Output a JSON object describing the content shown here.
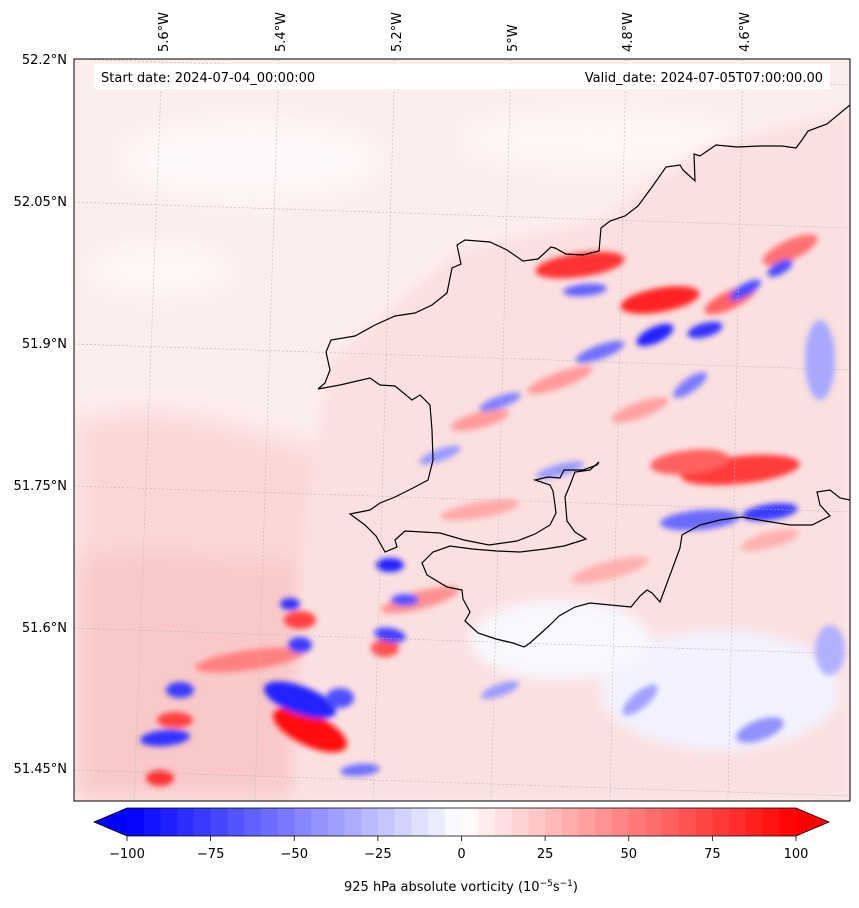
{
  "header": {
    "start_date": "Start date: 2024-07-04_00:00:00",
    "valid_date": "Valid_date: 2024-07-05T07:00:00.00"
  },
  "map": {
    "lon_labels": [
      "5.6°W",
      "5.4°W",
      "5.2°W",
      "5°W",
      "4.8°W",
      "4.6°W"
    ],
    "lat_labels": [
      "52.2°N",
      "52.05°N",
      "51.9°N",
      "51.75°N",
      "51.6°N",
      "51.45°N"
    ],
    "gridlines": true
  },
  "colorbar": {
    "label": "925 hPa absolute vorticity (10",
    "unit_exp1": "−5",
    "unit_mid": "s",
    "unit_exp2": "−1",
    "unit_close": ")",
    "ticks": [
      "−100",
      "−75",
      "−50",
      "−25",
      "0",
      "25",
      "50",
      "75",
      "100"
    ],
    "min": -100,
    "max": 100,
    "levels": 41,
    "extend": "both",
    "colormap": "bwr",
    "color_negative": "#0000ff",
    "color_zero": "#ffffff",
    "color_positive": "#ff0000"
  }
}
